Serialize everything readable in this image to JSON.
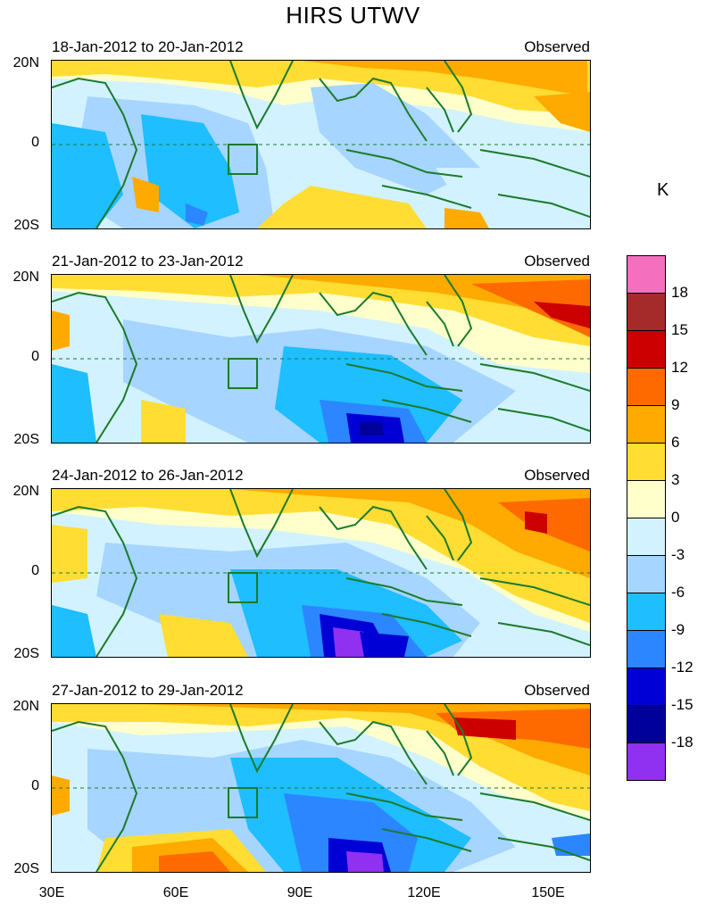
{
  "title": "HIRS UTWV",
  "units": "K",
  "panels": [
    {
      "date": "18-Jan-2012 to 20-Jan-2012",
      "label": "Observed"
    },
    {
      "date": "21-Jan-2012 to 23-Jan-2012",
      "label": "Observed"
    },
    {
      "date": "24-Jan-2012 to 26-Jan-2012",
      "label": "Observed"
    },
    {
      "date": "27-Jan-2012 to 29-Jan-2012",
      "label": "Observed"
    }
  ],
  "lat_labels": [
    "20N",
    "0",
    "20S"
  ],
  "lon_labels": [
    "30E",
    "60E",
    "90E",
    "120E",
    "150E"
  ],
  "colorbar": {
    "levels": [
      "18",
      "15",
      "12",
      "9",
      "6",
      "3",
      "0",
      "-3",
      "-6",
      "-9",
      "-12",
      "-15",
      "-18"
    ],
    "colors": [
      "#f46fbe",
      "#a52a2a",
      "#cc0000",
      "#ff6a00",
      "#ffaa00",
      "#ffdd33",
      "#ffffcc",
      "#d2f2ff",
      "#a6d5ff",
      "#1ebeff",
      "#2c86ff",
      "#0000d6",
      "#00009a",
      "#9030f0"
    ]
  },
  "map": {
    "extent": {
      "lon_min": 30,
      "lon_max": 160,
      "lat_min": -20,
      "lat_max": 20
    },
    "field_colors": {
      "pos3": "#ffdd33",
      "pos6": "#ffaa00",
      "pos9": "#ff6a00",
      "pos12": "#cc0000",
      "neg3": "#d2f2ff",
      "neg6": "#a6d5ff",
      "neg9": "#1ebeff",
      "neg12": "#2c86ff",
      "neg15": "#0000d6",
      "neg18": "#00009a",
      "neg21": "#9030f0",
      "coast": "#1c7a2c"
    }
  }
}
